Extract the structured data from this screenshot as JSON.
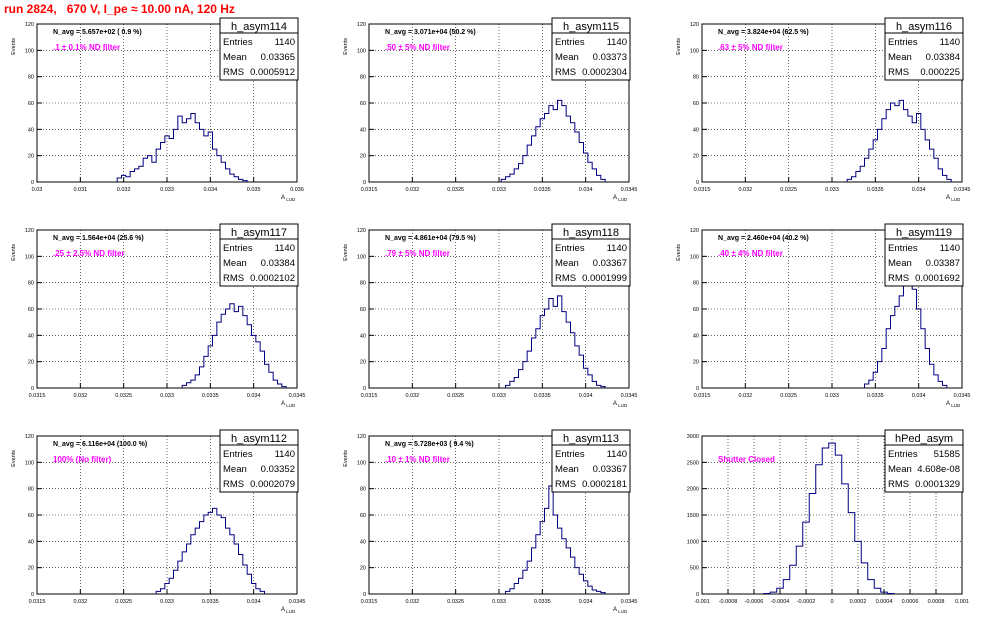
{
  "header": {
    "title": "run 2824,   670 V, I_pe ≈ 10.00 nA, 120 Hz"
  },
  "colors": {
    "histogram": "#000080",
    "label": "#ff00ff",
    "title": "#ff0000",
    "grid": "#000000"
  },
  "chart_data": [
    {
      "type": "histogram",
      "name": "h_asym114",
      "ylabel": "Events",
      "xlabel": "A_LUD",
      "navg": "N_avg = 5.657e+02 ( 0.9 %)",
      "filter": ".1 ± 0.1% ND filter",
      "stats": {
        "entries": "1140",
        "mean": "0.03365",
        "rms": "0.0005912"
      },
      "xlim": [
        0.03,
        0.036
      ],
      "ylim": [
        0,
        120
      ],
      "xticks": [
        "0.03",
        "0.031",
        "0.032",
        "0.033",
        "0.034",
        "0.035",
        "0.036"
      ],
      "yticks": [
        "0",
        "20",
        "40",
        "60",
        "80",
        "100",
        "120"
      ],
      "x": [
        0.0319,
        0.032,
        0.0321,
        0.0322,
        0.0323,
        0.0324,
        0.0325,
        0.0326,
        0.0327,
        0.0328,
        0.0329,
        0.033,
        0.0331,
        0.0332,
        0.0333,
        0.0334,
        0.0335,
        0.0336,
        0.0337,
        0.0338,
        0.0339,
        0.034,
        0.0341,
        0.0342,
        0.0343,
        0.0344,
        0.0345,
        0.0346,
        0.0347,
        0.0348
      ],
      "values": [
        3,
        5,
        4,
        8,
        10,
        12,
        18,
        20,
        15,
        25,
        30,
        35,
        33,
        40,
        50,
        45,
        48,
        52,
        45,
        40,
        35,
        38,
        25,
        20,
        15,
        10,
        6,
        4,
        2,
        1
      ]
    },
    {
      "type": "histogram",
      "name": "h_asym115",
      "ylabel": "Events",
      "xlabel": "A_LUD",
      "navg": "N_avg = 3.071e+04 (50.2 %)",
      "filter": ".50 ± 5% ND filter",
      "stats": {
        "entries": "1140",
        "mean": "0.03373",
        "rms": "0.0002304"
      },
      "xlim": [
        0.0315,
        0.0345
      ],
      "ylim": [
        0,
        120
      ],
      "xticks": [
        "0.0315",
        "0.032",
        "0.0325",
        "0.033",
        "0.0335",
        "0.034",
        "0.0345"
      ],
      "yticks": [
        "0",
        "20",
        "40",
        "60",
        "80",
        "100",
        "120"
      ],
      "x": [
        0.03305,
        0.0331,
        0.03315,
        0.0332,
        0.03325,
        0.0333,
        0.03335,
        0.0334,
        0.03345,
        0.0335,
        0.03355,
        0.0336,
        0.03365,
        0.0337,
        0.03375,
        0.0338,
        0.03385,
        0.0339,
        0.03395,
        0.034,
        0.03405,
        0.0341,
        0.03415,
        0.0342
      ],
      "values": [
        2,
        4,
        6,
        10,
        14,
        20,
        28,
        35,
        42,
        48,
        52,
        58,
        55,
        62,
        58,
        50,
        45,
        38,
        30,
        22,
        15,
        10,
        5,
        2
      ]
    },
    {
      "type": "histogram",
      "name": "h_asym116",
      "ylabel": "Events",
      "xlabel": "A_LUD",
      "navg": "N_avg = 3.824e+04 (62.5 %)",
      "filter": ".63 ± 5% ND filter",
      "stats": {
        "entries": "1140",
        "mean": "0.03384",
        "rms": "0.000225"
      },
      "xlim": [
        0.0315,
        0.0345
      ],
      "ylim": [
        0,
        120
      ],
      "xticks": [
        "0.0315",
        "0.032",
        "0.0325",
        "0.033",
        "0.0335",
        "0.034",
        "0.0345"
      ],
      "yticks": [
        "0",
        "20",
        "40",
        "60",
        "80",
        "100",
        "120"
      ],
      "x": [
        0.0332,
        0.03325,
        0.0333,
        0.03335,
        0.0334,
        0.03345,
        0.0335,
        0.03355,
        0.0336,
        0.03365,
        0.0337,
        0.03375,
        0.0338,
        0.03385,
        0.0339,
        0.03395,
        0.034,
        0.03405,
        0.0341,
        0.03415,
        0.0342,
        0.03425,
        0.0343,
        0.03435
      ],
      "values": [
        2,
        4,
        8,
        12,
        18,
        25,
        32,
        40,
        48,
        55,
        60,
        58,
        62,
        55,
        50,
        45,
        52,
        40,
        32,
        25,
        18,
        10,
        5,
        2
      ]
    },
    {
      "type": "histogram",
      "name": "h_asym117",
      "ylabel": "Events",
      "xlabel": "A_LUD",
      "navg": "N_avg = 1.564e+04 (25.6 %)",
      "filter": ".25 ± 2.5% ND filter",
      "stats": {
        "entries": "1140",
        "mean": "0.03384",
        "rms": "0.0002102"
      },
      "xlim": [
        0.0315,
        0.0345
      ],
      "ylim": [
        0,
        120
      ],
      "xticks": [
        "0.0315",
        "0.032",
        "0.0325",
        "0.033",
        "0.0335",
        "0.034",
        "0.0345"
      ],
      "yticks": [
        "0",
        "20",
        "40",
        "60",
        "80",
        "100",
        "120"
      ],
      "x": [
        0.0332,
        0.03325,
        0.0333,
        0.03335,
        0.0334,
        0.03345,
        0.0335,
        0.03355,
        0.0336,
        0.03365,
        0.0337,
        0.03375,
        0.0338,
        0.03385,
        0.0339,
        0.03395,
        0.034,
        0.03405,
        0.0341,
        0.03415,
        0.0342,
        0.03425,
        0.0343,
        0.03435
      ],
      "values": [
        2,
        4,
        6,
        10,
        16,
        24,
        32,
        40,
        50,
        56,
        60,
        64,
        58,
        62,
        55,
        48,
        40,
        35,
        28,
        18,
        12,
        6,
        3,
        1
      ]
    },
    {
      "type": "histogram",
      "name": "h_asym118",
      "ylabel": "Events",
      "xlabel": "A_LUD",
      "navg": "N_avg = 4.861e+04 (79.5 %)",
      "filter": ".79 ± 5% ND filter",
      "stats": {
        "entries": "1140",
        "mean": "0.03367",
        "rms": "0.0001999"
      },
      "xlim": [
        0.0315,
        0.0345
      ],
      "ylim": [
        0,
        120
      ],
      "xticks": [
        "0.0315",
        "0.032",
        "0.0325",
        "0.033",
        "0.0335",
        "0.034",
        "0.0345"
      ],
      "yticks": [
        "0",
        "20",
        "40",
        "60",
        "80",
        "100",
        "120"
      ],
      "x": [
        0.0331,
        0.03315,
        0.0332,
        0.03325,
        0.0333,
        0.03335,
        0.0334,
        0.03345,
        0.0335,
        0.03355,
        0.0336,
        0.03365,
        0.0337,
        0.03375,
        0.0338,
        0.03385,
        0.0339,
        0.03395,
        0.034,
        0.03405,
        0.0341,
        0.03415,
        0.0342
      ],
      "values": [
        2,
        5,
        8,
        14,
        20,
        28,
        38,
        45,
        55,
        60,
        68,
        62,
        70,
        58,
        50,
        42,
        32,
        25,
        15,
        10,
        5,
        2,
        1
      ]
    },
    {
      "type": "histogram",
      "name": "h_asym119",
      "ylabel": "Events",
      "xlabel": "A_LUD",
      "navg": "N_avg = 2.460e+04 (40.2 %)",
      "filter": ".40 ± 4% ND filter",
      "stats": {
        "entries": "1140",
        "mean": "0.03387",
        "rms": "0.0001692"
      },
      "xlim": [
        0.0315,
        0.0345
      ],
      "ylim": [
        0,
        120
      ],
      "xticks": [
        "0.0315",
        "0.032",
        "0.0325",
        "0.033",
        "0.0335",
        "0.034",
        "0.0345"
      ],
      "yticks": [
        "0",
        "20",
        "40",
        "60",
        "80",
        "100",
        "120"
      ],
      "x": [
        0.0334,
        0.03345,
        0.0335,
        0.03355,
        0.0336,
        0.03365,
        0.0337,
        0.03375,
        0.0338,
        0.03385,
        0.0339,
        0.03395,
        0.034,
        0.03405,
        0.0341,
        0.03415,
        0.0342,
        0.03425,
        0.0343
      ],
      "values": [
        3,
        6,
        12,
        20,
        30,
        45,
        55,
        62,
        70,
        78,
        82,
        75,
        60,
        45,
        30,
        18,
        10,
        5,
        2
      ]
    },
    {
      "type": "histogram",
      "name": "h_asym112",
      "ylabel": "Events",
      "xlabel": "A_LUD",
      "navg": "N_avg = 6.116e+04 (100.0 %)",
      "filter": "100% (No filter)",
      "stats": {
        "entries": "1140",
        "mean": "0.03352",
        "rms": "0.0002079"
      },
      "xlim": [
        0.0315,
        0.0345
      ],
      "ylim": [
        0,
        120
      ],
      "xticks": [
        "0.0315",
        "0.032",
        "0.0325",
        "0.033",
        "0.0335",
        "0.034",
        "0.0345"
      ],
      "yticks": [
        "0",
        "20",
        "40",
        "60",
        "80",
        "100",
        "120"
      ],
      "x": [
        0.0329,
        0.03295,
        0.033,
        0.03305,
        0.0331,
        0.03315,
        0.0332,
        0.03325,
        0.0333,
        0.03335,
        0.0334,
        0.03345,
        0.0335,
        0.03355,
        0.0336,
        0.03365,
        0.0337,
        0.03375,
        0.0338,
        0.03385,
        0.0339,
        0.03395,
        0.034,
        0.03405,
        0.0341
      ],
      "values": [
        2,
        4,
        8,
        12,
        18,
        25,
        32,
        38,
        45,
        50,
        55,
        60,
        62,
        65,
        60,
        58,
        50,
        45,
        38,
        30,
        22,
        15,
        8,
        4,
        2
      ]
    },
    {
      "type": "histogram",
      "name": "h_asym113",
      "ylabel": "Events",
      "xlabel": "A_LUD",
      "navg": "N_avg = 5.728e+03 ( 9.4 %)",
      "filter": ".10 ± 1% ND filter",
      "stats": {
        "entries": "1140",
        "mean": "0.03367",
        "rms": "0.0002181"
      },
      "xlim": [
        0.0315,
        0.0345
      ],
      "ylim": [
        0,
        120
      ],
      "xticks": [
        "0.0315",
        "0.032",
        "0.0325",
        "0.033",
        "0.0335",
        "0.034",
        "0.0345"
      ],
      "yticks": [
        "0",
        "20",
        "40",
        "60",
        "80",
        "100",
        "120"
      ],
      "x": [
        0.0331,
        0.03315,
        0.0332,
        0.03325,
        0.0333,
        0.03335,
        0.0334,
        0.03345,
        0.0335,
        0.03355,
        0.0336,
        0.03365,
        0.0337,
        0.03375,
        0.0338,
        0.03385,
        0.0339,
        0.03395,
        0.034,
        0.03405,
        0.0341,
        0.03415,
        0.0342
      ],
      "values": [
        2,
        4,
        8,
        12,
        18,
        25,
        35,
        45,
        55,
        65,
        82,
        60,
        50,
        42,
        35,
        28,
        20,
        15,
        10,
        6,
        3,
        2,
        1
      ]
    },
    {
      "type": "histogram",
      "name": "hPed_asym",
      "ylabel": "",
      "xlabel": "",
      "navg": "",
      "filter": "Shutter Closed",
      "stats": {
        "entries": "51585",
        "mean": "4.608e-08",
        "rms": "0.0001329"
      },
      "xlim": [
        -0.001,
        0.001
      ],
      "ylim": [
        0,
        3300
      ],
      "xticks": [
        "-0.001",
        "-0.0008",
        "-0.0006",
        "-0.0004",
        "-0.0002",
        "0",
        "0.0002",
        "0.0004",
        "0.0006",
        "0.0008",
        "0.001"
      ],
      "yticks": [
        "0",
        "500",
        "1000",
        "1500",
        "2000",
        "2500",
        "3000"
      ],
      "x": [
        -0.0005,
        -0.00045,
        -0.0004,
        -0.00035,
        -0.0003,
        -0.00025,
        -0.0002,
        -0.00015,
        -0.0001,
        -5e-05,
        0,
        5e-05,
        0.0001,
        0.00015,
        0.0002,
        0.00025,
        0.0003,
        0.00035,
        0.0004,
        0.00045
      ],
      "values": [
        10,
        40,
        120,
        300,
        600,
        1000,
        1500,
        2100,
        2700,
        3050,
        3150,
        2900,
        2300,
        1700,
        1100,
        650,
        300,
        120,
        40,
        10
      ]
    }
  ]
}
